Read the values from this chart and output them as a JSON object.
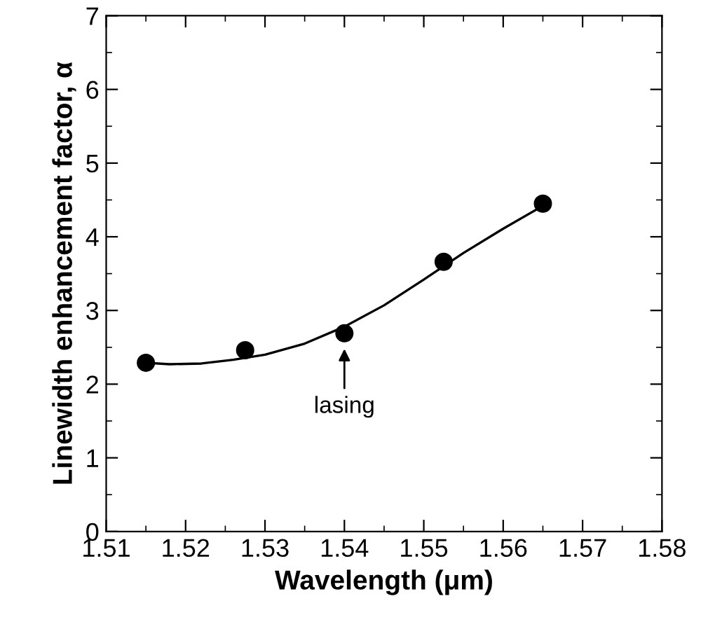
{
  "chart_data": {
    "type": "scatter",
    "xlabel": "Wavelength (μm)",
    "ylabel": "Linewidth enhancement factor, α",
    "xlim": [
      1.51,
      1.58
    ],
    "ylim": [
      0,
      7
    ],
    "xticks": [
      1.51,
      1.52,
      1.53,
      1.54,
      1.55,
      1.56,
      1.57,
      1.58
    ],
    "yticks": [
      0,
      1,
      2,
      3,
      4,
      5,
      6,
      7
    ],
    "marker": "circle",
    "grid": false,
    "series": [
      {
        "type": "scatter",
        "color": "#000000",
        "x": [
          1.515,
          1.5275,
          1.54,
          1.5525,
          1.565
        ],
        "values": [
          2.29,
          2.46,
          2.69,
          3.66,
          4.45
        ]
      },
      {
        "type": "line",
        "color": "#000000",
        "marker": "none",
        "line_style": "solid",
        "x": [
          1.515,
          1.518,
          1.522,
          1.526,
          1.53,
          1.535,
          1.54,
          1.545,
          1.55,
          1.555,
          1.56,
          1.565
        ],
        "values": [
          2.29,
          2.27,
          2.28,
          2.33,
          2.4,
          2.55,
          2.78,
          3.07,
          3.42,
          3.78,
          4.11,
          4.42
        ]
      }
    ],
    "annotations": [
      {
        "text": "lasing",
        "x": 1.54,
        "y": 2.69
      }
    ]
  }
}
